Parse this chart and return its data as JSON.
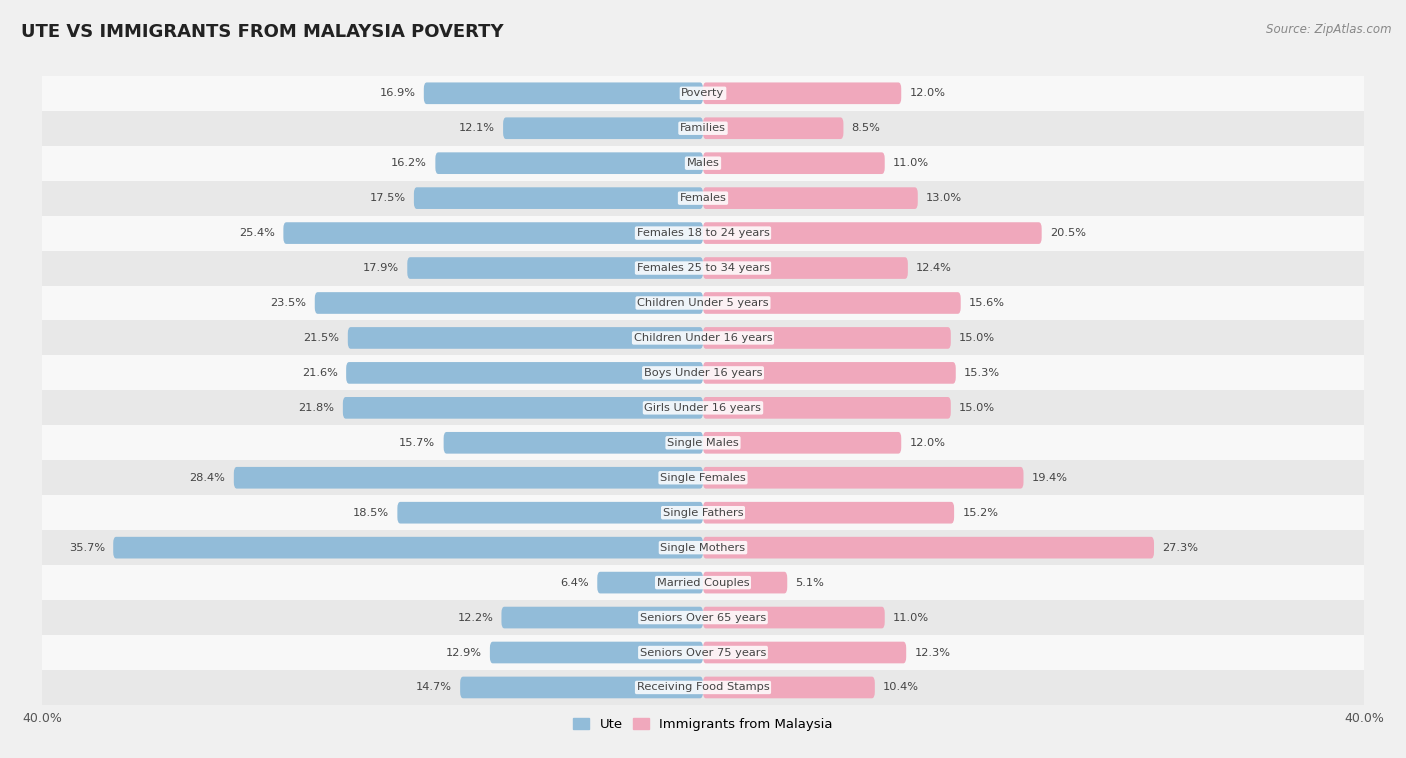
{
  "title": "UTE VS IMMIGRANTS FROM MALAYSIA POVERTY",
  "source": "Source: ZipAtlas.com",
  "categories": [
    "Poverty",
    "Families",
    "Males",
    "Females",
    "Females 18 to 24 years",
    "Females 25 to 34 years",
    "Children Under 5 years",
    "Children Under 16 years",
    "Boys Under 16 years",
    "Girls Under 16 years",
    "Single Males",
    "Single Females",
    "Single Fathers",
    "Single Mothers",
    "Married Couples",
    "Seniors Over 65 years",
    "Seniors Over 75 years",
    "Receiving Food Stamps"
  ],
  "ute_values": [
    16.9,
    12.1,
    16.2,
    17.5,
    25.4,
    17.9,
    23.5,
    21.5,
    21.6,
    21.8,
    15.7,
    28.4,
    18.5,
    35.7,
    6.4,
    12.2,
    12.9,
    14.7
  ],
  "malaysia_values": [
    12.0,
    8.5,
    11.0,
    13.0,
    20.5,
    12.4,
    15.6,
    15.0,
    15.3,
    15.0,
    12.0,
    19.4,
    15.2,
    27.3,
    5.1,
    11.0,
    12.3,
    10.4
  ],
  "ute_color": "#92bcd9",
  "malaysia_color": "#f0a8bc",
  "background_color": "#f0f0f0",
  "row_color_light": "#f8f8f8",
  "row_color_dark": "#e8e8e8",
  "axis_max": 40.0,
  "legend_ute": "Ute",
  "legend_malaysia": "Immigrants from Malaysia"
}
